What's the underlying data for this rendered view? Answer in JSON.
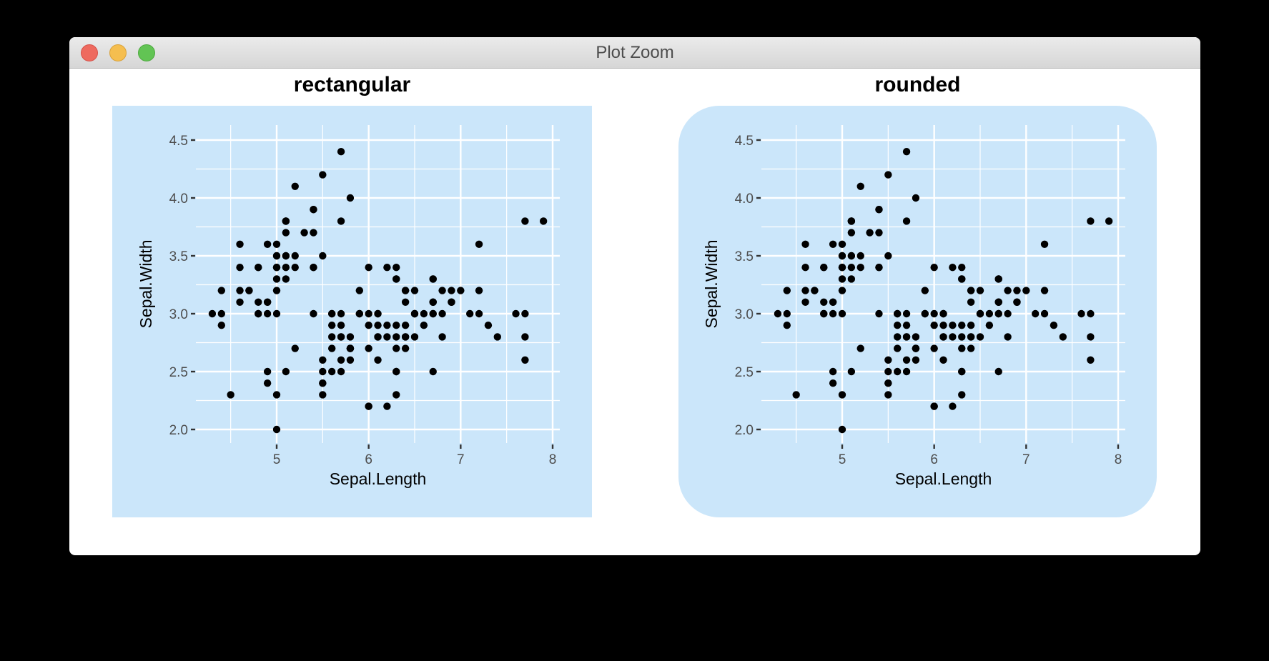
{
  "window": {
    "title": "Plot Zoom",
    "buttons": {
      "close": "close-button",
      "minimize": "minimize-button",
      "maximize": "zoom-button"
    }
  },
  "colors": {
    "panel_background": "#cbe6fa",
    "grid": "#ffffff",
    "points": "#000000",
    "tick_text": "#4d4d4d",
    "titlebar": "#dcdcdc",
    "close": "#ee6a5f",
    "minimize": "#f5be4f",
    "maximize": "#62c454"
  },
  "plots": [
    {
      "title": "rectangular",
      "xlabel": "Sepal.Length",
      "ylabel": "Sepal.Width",
      "corner": "square"
    },
    {
      "title": "rounded",
      "xlabel": "Sepal.Length",
      "ylabel": "Sepal.Width",
      "corner": "rounded"
    }
  ],
  "chart_data": [
    {
      "type": "scatter",
      "title": "rectangular",
      "xlabel": "Sepal.Length",
      "ylabel": "Sepal.Width",
      "xlim": [
        4.12,
        8.08
      ],
      "ylim": [
        1.88,
        4.52
      ],
      "xticks": [
        5,
        6,
        7,
        8
      ],
      "xtick_labels": [
        "5",
        "6",
        "7",
        "8"
      ],
      "yticks": [
        2.0,
        2.5,
        3.0,
        3.5,
        4.0,
        4.5
      ],
      "ytick_labels": [
        "2.0",
        "2.5",
        "3.0",
        "3.5",
        "4.0",
        "4.5"
      ],
      "grid": true,
      "background": "#cbe6fa",
      "corner": "square",
      "x": [
        5.1,
        4.9,
        4.7,
        4.6,
        5.0,
        5.4,
        4.6,
        5.0,
        4.4,
        4.9,
        5.4,
        4.8,
        4.8,
        4.3,
        5.8,
        5.7,
        5.4,
        5.1,
        5.7,
        5.1,
        5.4,
        5.1,
        4.6,
        5.1,
        4.8,
        5.0,
        5.0,
        5.2,
        5.2,
        4.7,
        4.8,
        5.4,
        5.2,
        5.5,
        4.9,
        5.0,
        5.5,
        4.9,
        4.4,
        5.1,
        5.0,
        4.5,
        4.4,
        5.0,
        5.1,
        4.8,
        5.1,
        4.6,
        5.3,
        5.0,
        7.0,
        6.4,
        6.9,
        5.5,
        6.5,
        5.7,
        6.3,
        4.9,
        6.6,
        5.2,
        5.0,
        5.9,
        6.0,
        6.1,
        5.6,
        6.7,
        5.6,
        5.8,
        6.2,
        5.6,
        5.9,
        6.1,
        6.3,
        6.1,
        6.4,
        6.6,
        6.8,
        6.7,
        6.0,
        5.7,
        5.5,
        5.5,
        5.8,
        6.0,
        5.4,
        6.0,
        6.7,
        6.3,
        5.6,
        5.5,
        5.5,
        6.1,
        5.8,
        5.0,
        5.6,
        5.7,
        5.7,
        6.2,
        5.1,
        5.7,
        6.3,
        5.8,
        7.1,
        6.3,
        6.5,
        7.6,
        4.9,
        7.3,
        6.7,
        7.2,
        6.5,
        6.4,
        6.8,
        5.7,
        5.8,
        6.4,
        6.5,
        7.7,
        7.7,
        6.0,
        6.9,
        5.6,
        7.7,
        6.3,
        6.7,
        7.2,
        6.2,
        6.1,
        6.4,
        7.2,
        7.4,
        7.9,
        6.4,
        6.3,
        6.1,
        7.7,
        6.3,
        6.4,
        6.0,
        6.9,
        6.7,
        6.9,
        5.8,
        6.8,
        6.7,
        6.7,
        6.3,
        6.5,
        6.2,
        5.9
      ],
      "y": [
        3.5,
        3.0,
        3.2,
        3.1,
        3.6,
        3.9,
        3.4,
        3.4,
        2.9,
        3.1,
        3.7,
        3.4,
        3.0,
        3.0,
        4.0,
        4.4,
        3.9,
        3.5,
        3.8,
        3.8,
        3.4,
        3.7,
        3.6,
        3.3,
        3.4,
        3.0,
        3.4,
        3.5,
        3.4,
        3.2,
        3.1,
        3.4,
        4.1,
        4.2,
        3.1,
        3.2,
        3.5,
        3.6,
        3.0,
        3.4,
        3.5,
        2.3,
        3.2,
        3.5,
        3.8,
        3.0,
        3.8,
        3.2,
        3.7,
        3.3,
        3.2,
        3.2,
        3.1,
        2.3,
        2.8,
        2.8,
        3.3,
        2.4,
        2.9,
        2.7,
        2.0,
        3.0,
        2.2,
        2.9,
        2.9,
        3.1,
        3.0,
        2.7,
        2.2,
        2.5,
        3.2,
        2.8,
        2.5,
        2.8,
        2.9,
        3.0,
        2.8,
        3.0,
        2.9,
        2.6,
        2.4,
        2.4,
        2.7,
        2.7,
        3.0,
        3.4,
        3.1,
        2.3,
        3.0,
        2.5,
        2.6,
        3.0,
        2.6,
        2.3,
        2.7,
        3.0,
        2.9,
        2.9,
        2.5,
        2.8,
        3.3,
        2.7,
        3.0,
        2.9,
        3.0,
        3.0,
        2.5,
        2.9,
        2.5,
        3.6,
        3.2,
        2.7,
        3.0,
        2.5,
        2.8,
        3.2,
        3.0,
        3.8,
        2.6,
        2.2,
        3.2,
        2.8,
        2.8,
        2.7,
        3.3,
        3.2,
        2.8,
        3.0,
        2.8,
        3.0,
        2.8,
        3.8,
        2.8,
        2.8,
        2.6,
        3.0,
        3.4,
        3.1,
        3.0,
        3.1,
        3.1,
        3.1,
        2.7,
        3.2,
        3.3,
        3.0,
        2.5,
        3.0,
        3.4,
        3.0
      ]
    },
    {
      "type": "scatter",
      "title": "rounded",
      "xlabel": "Sepal.Length",
      "ylabel": "Sepal.Width",
      "xlim": [
        4.12,
        8.08
      ],
      "ylim": [
        1.88,
        4.52
      ],
      "xticks": [
        5,
        6,
        7,
        8
      ],
      "xtick_labels": [
        "5",
        "6",
        "7",
        "8"
      ],
      "yticks": [
        2.0,
        2.5,
        3.0,
        3.5,
        4.0,
        4.5
      ],
      "ytick_labels": [
        "2.0",
        "2.5",
        "3.0",
        "3.5",
        "4.0",
        "4.5"
      ],
      "grid": true,
      "background": "#cbe6fa",
      "corner": "rounded",
      "same_data_as": "rectangular"
    }
  ]
}
